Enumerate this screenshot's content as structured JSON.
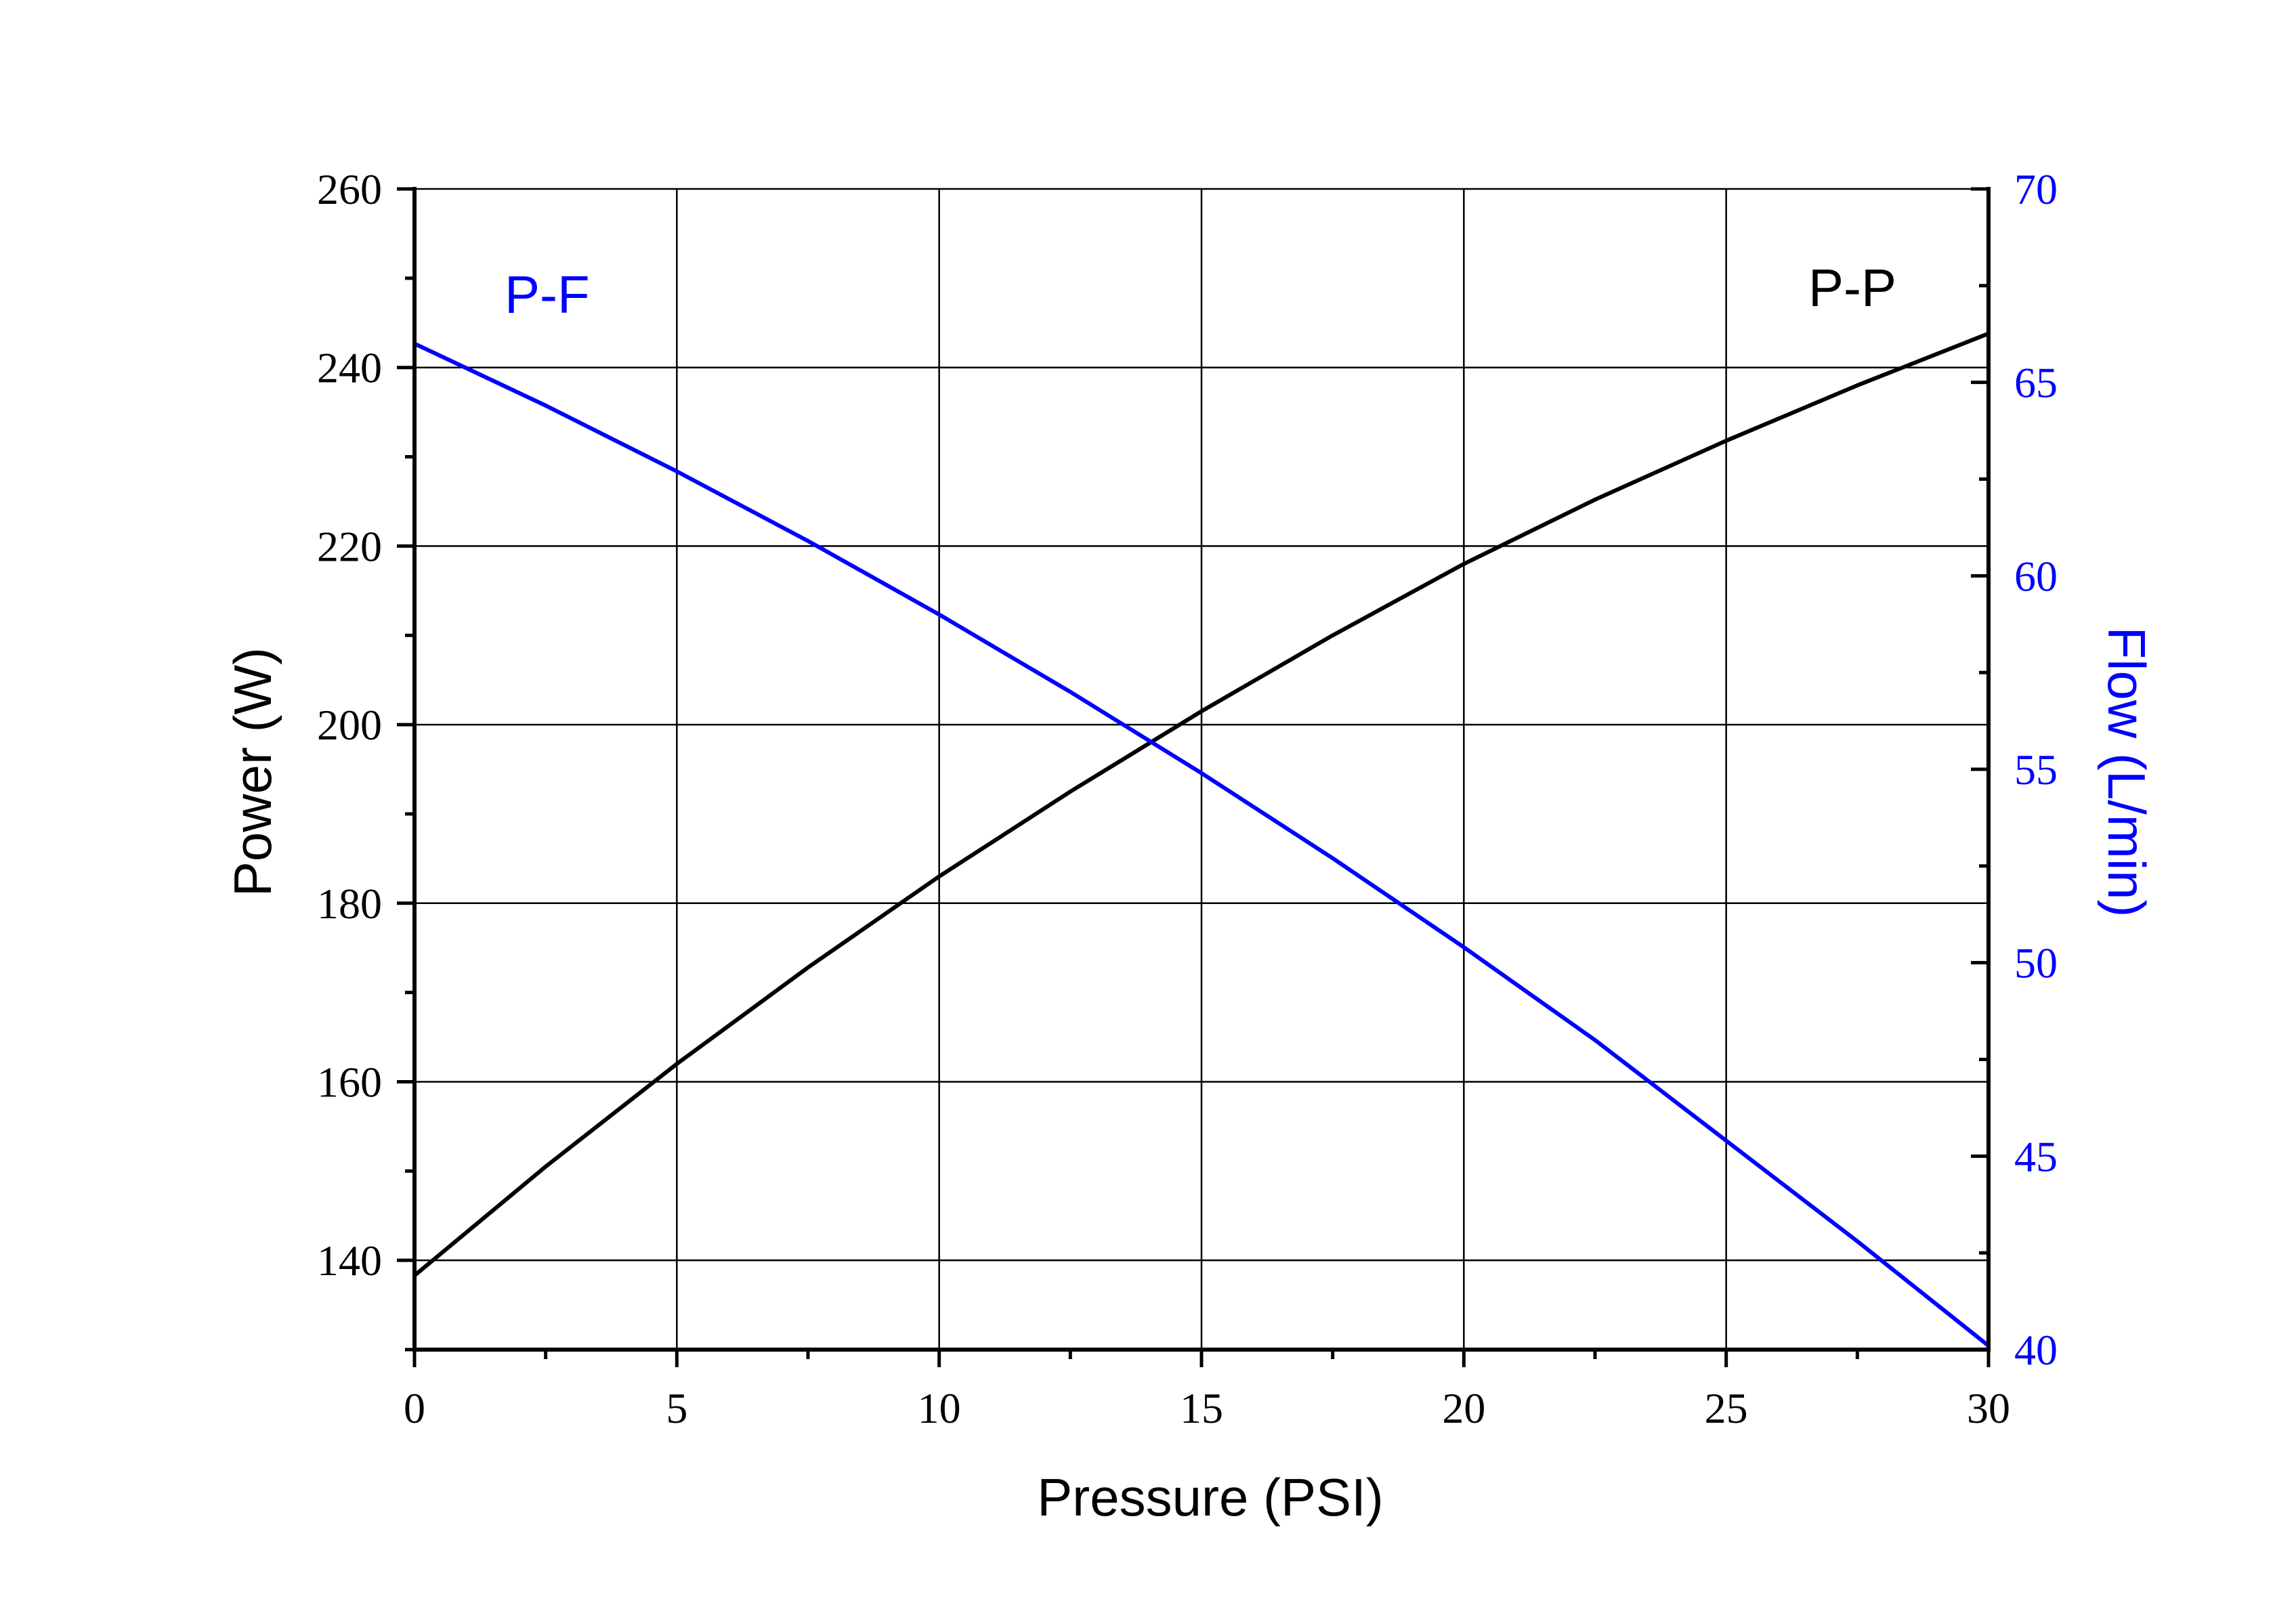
{
  "chart_data": {
    "type": "line",
    "xlabel": "Pressure (PSI)",
    "ylabel_left": "Power (W)",
    "ylabel_right": "Flow (L/min)",
    "xlim": [
      0,
      30
    ],
    "ylim_left": [
      130,
      260
    ],
    "ylim_right": [
      40,
      70
    ],
    "x_ticks": [
      "0",
      "5",
      "10",
      "15",
      "20",
      "25",
      "30"
    ],
    "y_left_ticks": [
      "140",
      "160",
      "180",
      "200",
      "220",
      "240",
      "260"
    ],
    "y_right_ticks": [
      "40",
      "45",
      "50",
      "55",
      "60",
      "65",
      "70"
    ],
    "grid": true,
    "series": [
      {
        "name": "P-P",
        "axis": "left",
        "color": "#000000",
        "x": [
          0,
          2.5,
          5,
          7.5,
          10,
          12.5,
          15,
          17.5,
          20,
          22.5,
          25,
          27.5,
          30
        ],
        "y": [
          138.3,
          150.5,
          162.0,
          172.8,
          183.0,
          192.5,
          201.5,
          210.0,
          218.0,
          225.2,
          231.8,
          238.0,
          243.8
        ]
      },
      {
        "name": "P-F",
        "axis": "right",
        "color": "#0000ff",
        "x": [
          0,
          2.5,
          5,
          7.5,
          10,
          12.5,
          15,
          17.5,
          20,
          22.5,
          25,
          27.5,
          30
        ],
        "y": [
          66.0,
          64.4,
          62.7,
          60.9,
          59.0,
          57.0,
          54.9,
          52.7,
          50.4,
          48.0,
          45.4,
          42.8,
          40.1
        ]
      }
    ],
    "annotations": [
      {
        "text": "P-F",
        "color": "#0000ff",
        "position": "top-left"
      },
      {
        "text": "P-P",
        "color": "#000000",
        "position": "top-right"
      }
    ]
  }
}
